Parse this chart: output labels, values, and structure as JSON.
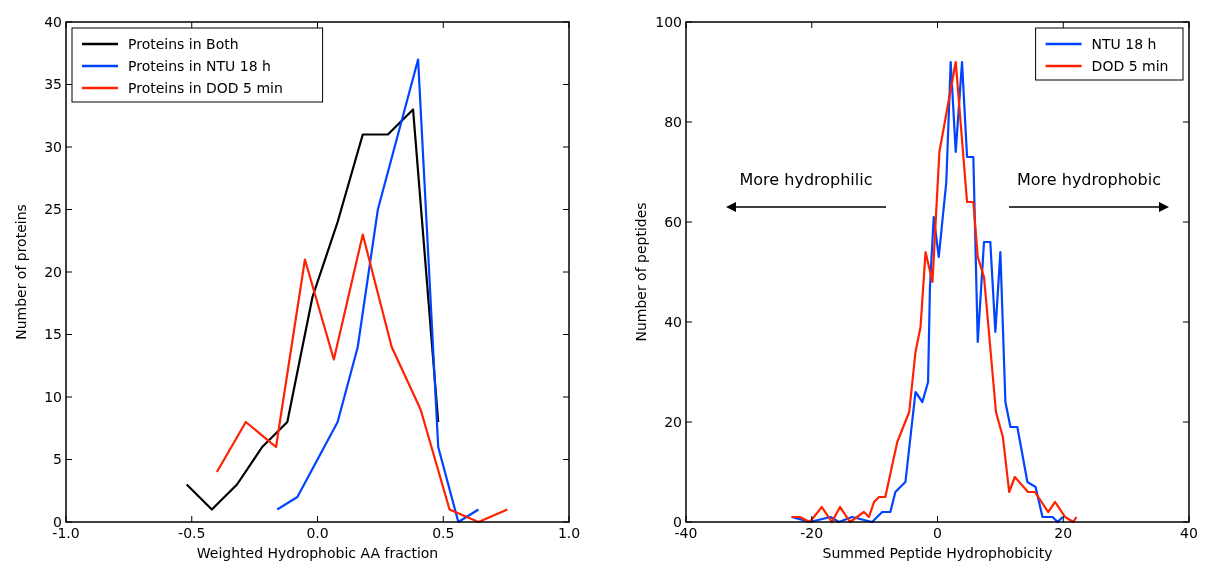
{
  "chart_data": [
    {
      "type": "line",
      "xlabel": "Weighted Hydrophobic AA fraction",
      "ylabel": "Number of proteins",
      "xlim": [
        -1,
        1
      ],
      "ylim": [
        0,
        40
      ],
      "xticks": [
        {
          "value": -1,
          "label": "-1.0"
        },
        -0.5,
        {
          "value": 0,
          "label": "0.0"
        },
        0.5,
        {
          "value": 1,
          "label": "1.0"
        }
      ],
      "yticks": [
        0,
        5,
        10,
        15,
        20,
        25,
        30,
        35,
        40
      ],
      "legend": "top left",
      "grid": false,
      "marker": "none",
      "line_style": "solid",
      "series": [
        {
          "name": "Proteins in Both",
          "color": "#000000",
          "x": [
            -0.52,
            -0.42,
            -0.32,
            -0.22,
            -0.12,
            -0.02,
            0.08,
            0.18,
            0.28,
            0.38,
            0.48
          ],
          "values": [
            3,
            1,
            3,
            6,
            8,
            18,
            24,
            31,
            31,
            33,
            8
          ]
        },
        {
          "name": "Proteins in NTU 18 h",
          "color": "#0044ff",
          "x": [
            -0.16,
            -0.08,
            0,
            0.08,
            0.16,
            0.24,
            0.32,
            0.4,
            0.48,
            0.56,
            0.64
          ],
          "values": [
            1,
            2,
            5,
            8,
            14,
            25,
            31,
            37,
            6,
            0,
            1
          ]
        },
        {
          "name": "Proteins in DOD 5 min",
          "color": "#ff2200",
          "x": [
            -0.4,
            -0.285,
            -0.165,
            -0.05,
            0.065,
            0.18,
            0.295,
            0.41,
            0.525,
            0.64,
            0.755
          ],
          "values": [
            4,
            8,
            6,
            21,
            13,
            23,
            14,
            9,
            1,
            0,
            1
          ]
        }
      ]
    },
    {
      "type": "line",
      "xlabel": "Summed Peptide Hydrophobicity",
      "ylabel": "Number of peptides",
      "xlim": [
        -40,
        40
      ],
      "ylim": [
        0,
        100
      ],
      "xticks": [
        -40,
        -20,
        0,
        20,
        40
      ],
      "yticks": [
        0,
        20,
        40,
        60,
        80,
        100
      ],
      "legend": "top right",
      "grid": false,
      "marker": "none",
      "line_style": "solid",
      "annotations": [
        "More hydrophilic",
        "More hydrophobic"
      ],
      "series": [
        {
          "name": "NTU 18 h",
          "color": "#0044ff",
          "x": [
            -23.2,
            -20.3,
            -17,
            -15.7,
            -13.6,
            -10.4,
            -8.8,
            -7.5,
            -6.7,
            -5.1,
            -3.5,
            -2.4,
            -1.5,
            -1.2,
            -0.6,
            0.2,
            1.4,
            2.1,
            2.9,
            3.9,
            4.7,
            5.7,
            6.4,
            7.4,
            8.4,
            9.2,
            10,
            10.8,
            11.6,
            12.7,
            14.3,
            15.6,
            16.7,
            18.3,
            19.1,
            19.9
          ],
          "values": [
            1,
            0,
            1,
            0,
            1,
            0,
            2,
            2,
            6,
            8,
            26,
            24,
            28,
            47,
            61,
            53,
            68,
            92,
            74,
            92,
            73,
            73,
            36,
            56,
            56,
            38,
            54,
            24,
            19,
            19,
            8,
            7,
            1,
            1,
            0,
            1
          ]
        },
        {
          "name": "DOD 5 min",
          "color": "#ff2200",
          "x": [
            -23.2,
            -21.9,
            -20.3,
            -18.4,
            -16.8,
            -15.5,
            -13.9,
            -11.7,
            -10.9,
            -10.1,
            -9.3,
            -8.3,
            -6.4,
            -4.5,
            -3.5,
            -2.7,
            -1.9,
            -0.8,
            0.3,
            1.6,
            2.9,
            4.7,
            5.7,
            6.4,
            7.4,
            9.3,
            10.4,
            11.4,
            12.3,
            14.4,
            15.5,
            17.6,
            18.7,
            20.3,
            21.6,
            22.1
          ],
          "values": [
            1,
            1,
            0,
            3,
            0,
            3,
            0,
            2,
            1,
            4,
            5,
            5,
            16,
            22,
            34,
            39,
            54,
            48,
            74,
            83,
            92,
            64,
            64,
            53,
            49,
            22,
            17,
            6,
            9,
            6,
            6,
            2,
            4,
            1,
            0,
            1
          ]
        }
      ]
    }
  ]
}
